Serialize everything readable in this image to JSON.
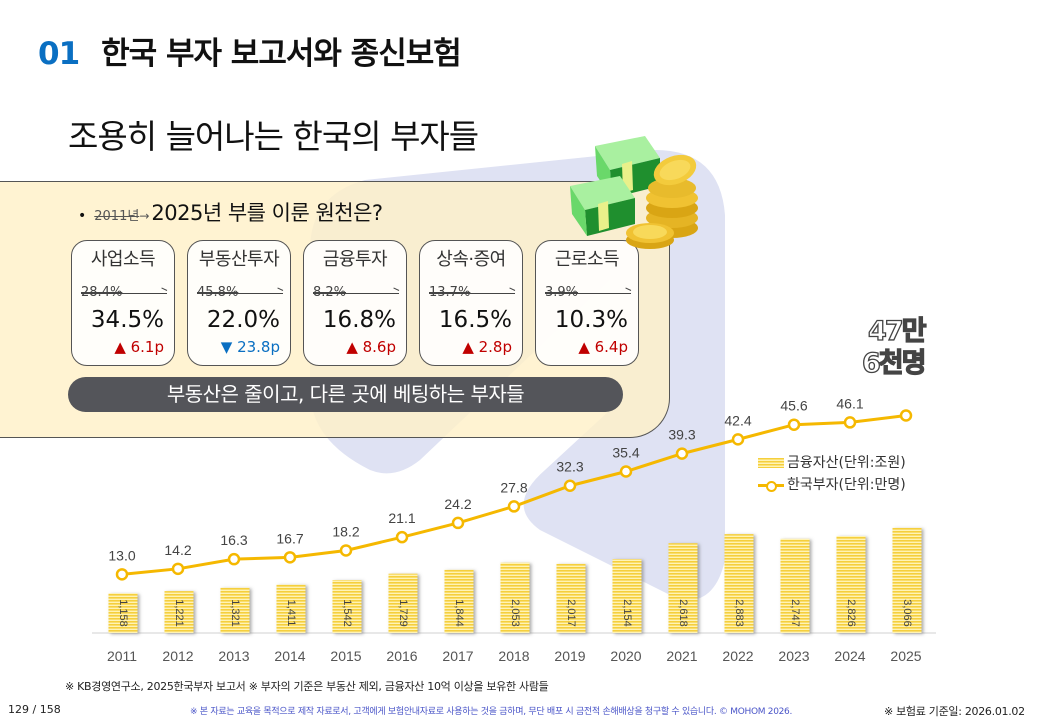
{
  "header": {
    "section_number": "01",
    "section_title": "한국 부자 보고서와 종신보험",
    "subtitle": "조용히 늘어나는  한국의 부자들"
  },
  "panel": {
    "bullet": "•",
    "old_year": "2011년",
    "arrow": "→",
    "question": "2025년  부를 이룬 원천은?",
    "cards": [
      {
        "label": "사업소득",
        "old_value": "28.4%",
        "new_value": "34.5%",
        "delta": "▲ 6.1p",
        "direction": "up"
      },
      {
        "label": "부동산투자",
        "old_value": "45.8%",
        "new_value": "22.0%",
        "delta": "▼ 23.8p",
        "direction": "down"
      },
      {
        "label": "금융투자",
        "old_value": "8.2%",
        "new_value": "16.8%",
        "delta": "▲ 8.6p",
        "direction": "up"
      },
      {
        "label": "상속·증여",
        "old_value": "13.7%",
        "new_value": "16.5%",
        "delta": "▲ 2.8p",
        "direction": "up"
      },
      {
        "label": "근로소득",
        "old_value": "3.9%",
        "new_value": "10.3%",
        "delta": "▲ 6.4p",
        "direction": "up"
      }
    ],
    "summary": "부동산은 줄이고, 다른 곳에 베팅하는 부자들"
  },
  "illustration": {
    "icon": "money-stack-coins-icon"
  },
  "callout": {
    "line1": "47만",
    "line2": "6천명"
  },
  "colors": {
    "accent_blue": "#0a6fc2",
    "up_red": "#c00000",
    "down_blue": "#0a6fc2",
    "line_gold": "#f5b800",
    "bar_gold": "#f5cf3c",
    "panel_bg": "#fff0c8",
    "pill_bg": "#54555a",
    "watermark": "#dfe2f3"
  },
  "chart_data": {
    "type": "bar+line",
    "title": "",
    "categories": [
      "2011",
      "2012",
      "2013",
      "2014",
      "2015",
      "2016",
      "2017",
      "2018",
      "2019",
      "2020",
      "2021",
      "2022",
      "2023",
      "2024",
      "2025"
    ],
    "series": [
      {
        "name": "금융자산(단위:조원)",
        "type": "bar",
        "values": [
          1158,
          1221,
          1321,
          1411,
          1542,
          1729,
          1844,
          2053,
          2017,
          2154,
          2618,
          2883,
          2747,
          2826,
          3066
        ],
        "labels": [
          "1,158",
          "1,221",
          "1,321",
          "1,411",
          "1,542",
          "1,729",
          "1,844",
          "2,053",
          "2,017",
          "2,154",
          "2,618",
          "2,883",
          "2,747",
          "2,826",
          "3,066"
        ]
      },
      {
        "name": "한국부자(단위:만명)",
        "type": "line",
        "values": [
          13.0,
          14.2,
          16.3,
          16.7,
          18.2,
          21.1,
          24.2,
          27.8,
          32.3,
          35.4,
          39.3,
          42.4,
          45.6,
          46.1,
          47.6
        ],
        "labels": [
          "13.0",
          "14.2",
          "16.3",
          "16.7",
          "18.2",
          "21.1",
          "24.2",
          "27.8",
          "32.3",
          "35.4",
          "39.3",
          "42.4",
          "45.6",
          "46.1",
          ""
        ]
      }
    ],
    "xlabel": "",
    "ylabel": "",
    "grid": false,
    "legend_position": "right",
    "legend": [
      "금융자산(단위:조원)",
      "한국부자(단위:만명)"
    ]
  },
  "footer": {
    "source": "※ KB경영연구소, 2025한국부자 보고서 ※ 부자의 기준은 부동산 제외, 금융자산 10억 이상을 보유한 사람들",
    "page": "129 / 158",
    "copyright": "※ 본 자료는 교육을 목적으로 제작 자료로서, 고객에게 보험안내자료로 사용하는 것을 금하며, 무단 배포 시 금전적 손해배상을 청구할 수 있습니다. © MOHOM 2026.",
    "base_date": "※ 보험료 기준일: 2026.01.02"
  }
}
